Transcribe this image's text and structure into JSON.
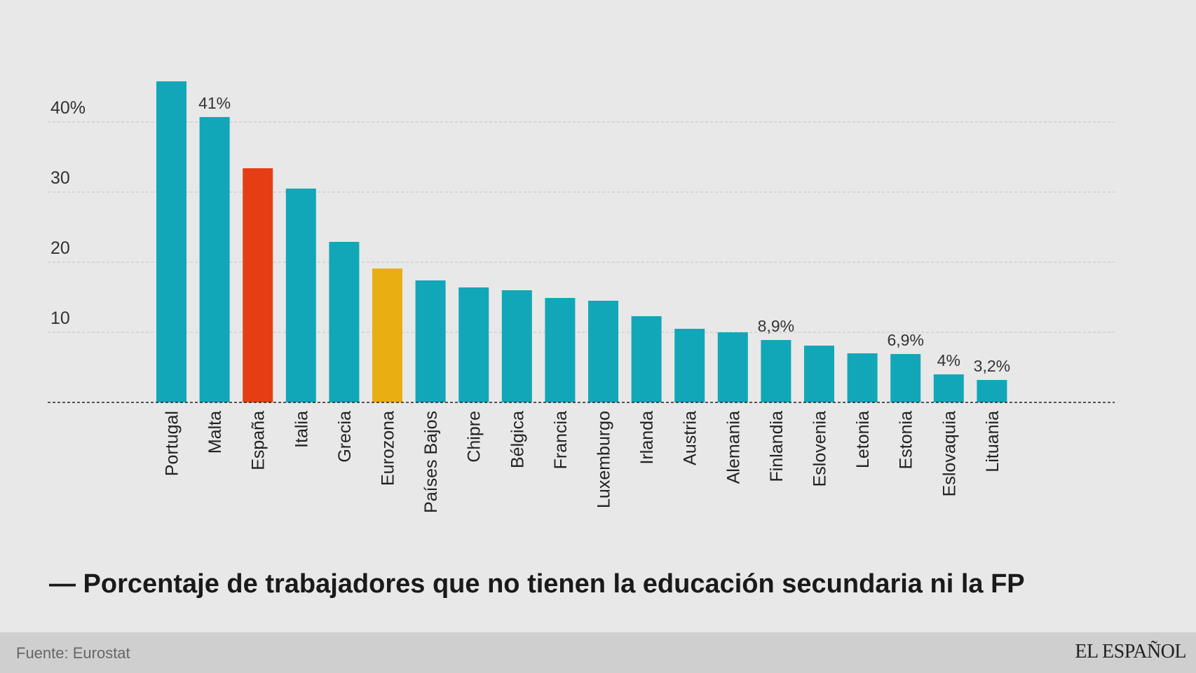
{
  "chart_data": {
    "type": "bar",
    "categories": [
      "Portugal",
      "Malta",
      "España",
      "Italia",
      "Grecia",
      "Eurozona",
      "Países Bajos",
      "Chipre",
      "Bélgica",
      "Francia",
      "Luxemburgo",
      "Irlanda",
      "Austria",
      "Alemania",
      "Finlandia",
      "Eslovenia",
      "Letonia",
      "Estonia",
      "Eslovaquia",
      "Lituania"
    ],
    "values": [
      45.8,
      40.7,
      33.4,
      30.5,
      22.9,
      19.1,
      17.4,
      16.4,
      16.0,
      14.9,
      14.5,
      12.3,
      10.5,
      10.0,
      8.9,
      8.1,
      7.0,
      6.9,
      4.0,
      3.2
    ],
    "data_labels": [
      "",
      "41%",
      "",
      "",
      "",
      "",
      "",
      "",
      "",
      "",
      "",
      "",
      "",
      "",
      "8,9%",
      "",
      "",
      "6,9%",
      "4%",
      "3,2%"
    ],
    "bar_colors": [
      "#12a7b8",
      "#12a7b8",
      "#e63e14",
      "#12a7b8",
      "#12a7b8",
      "#e8ae12",
      "#12a7b8",
      "#12a7b8",
      "#12a7b8",
      "#12a7b8",
      "#12a7b8",
      "#12a7b8",
      "#12a7b8",
      "#12a7b8",
      "#12a7b8",
      "#12a7b8",
      "#12a7b8",
      "#12a7b8",
      "#12a7b8",
      "#12a7b8"
    ],
    "yticks": [
      10,
      20,
      30,
      40
    ],
    "ytick_labels": [
      "10",
      "20",
      "30",
      "40%"
    ],
    "ylim": [
      0,
      46
    ],
    "grid": true,
    "title": "— Porcentaje de trabajadores que no tienen la educación secundaria ni la FP"
  },
  "footer": {
    "source": "Fuente: Eurostat",
    "logo": "EL ESPAÑOL"
  }
}
